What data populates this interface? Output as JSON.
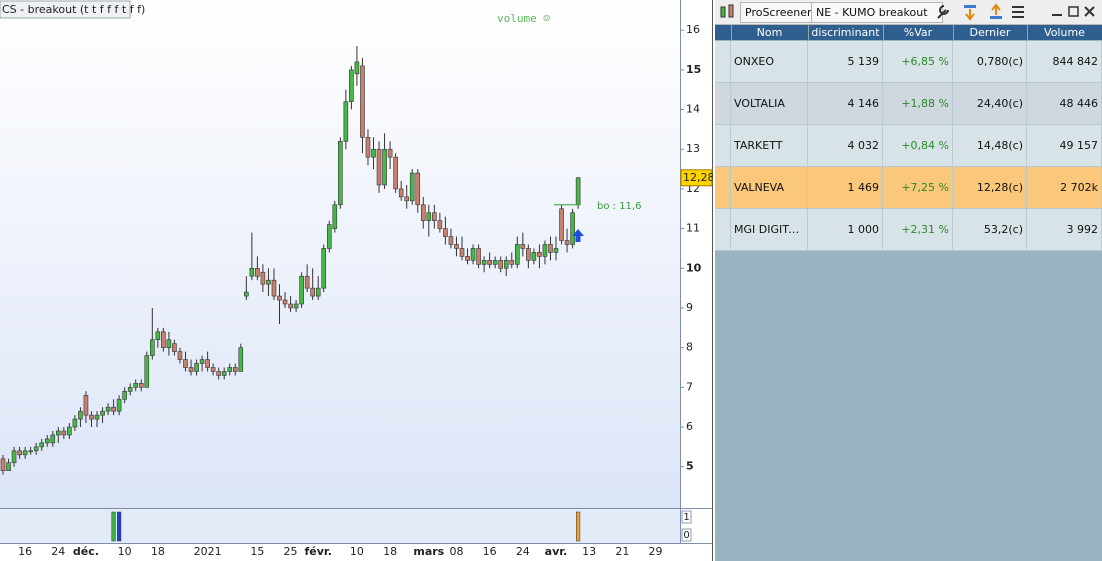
{
  "chart_data": {
    "type": "candlestick",
    "title": "CS - breakout (t t f f f t f f)",
    "indicator_label": "volume ☺",
    "categories": [
      null,
      null,
      null,
      null,
      "16",
      null,
      null,
      null,
      null,
      null,
      "24",
      null,
      null,
      null,
      null,
      "déc.",
      null,
      null,
      null,
      null,
      null,
      null,
      "10",
      null,
      null,
      null,
      null,
      null,
      "18",
      null,
      null,
      null,
      null,
      null,
      null,
      null,
      null,
      "2021",
      null,
      null,
      null,
      null,
      null,
      null,
      null,
      null,
      "15",
      null,
      null,
      null,
      null,
      null,
      "25",
      null,
      null,
      null,
      null,
      "févr.",
      null,
      null,
      null,
      null,
      null,
      null,
      "10",
      null,
      null,
      null,
      null,
      null,
      "18",
      null,
      null,
      null,
      null,
      null,
      null,
      "mars",
      null,
      null,
      null,
      null,
      "08",
      null,
      null,
      null,
      null,
      null,
      "16",
      null,
      null,
      null,
      null,
      null,
      "24",
      null,
      null,
      null,
      null,
      null,
      "avr.",
      null,
      null,
      null,
      null,
      null,
      "13",
      null,
      null,
      null,
      null,
      null,
      "21",
      null,
      null,
      null,
      null,
      null,
      "29"
    ],
    "open": [
      5.2,
      4.9,
      5.1,
      5.4,
      5.3,
      5.4,
      5.4,
      5.5,
      5.6,
      5.6,
      5.8,
      5.9,
      5.8,
      6.0,
      6.2,
      6.8,
      6.3,
      6.2,
      6.3,
      6.4,
      6.5,
      6.4,
      6.7,
      6.9,
      7.0,
      7.1,
      7.0,
      7.8,
      8.2,
      8.4,
      8.0,
      8.1,
      7.9,
      7.7,
      7.5,
      7.4,
      7.6,
      7.7,
      7.5,
      7.4,
      7.3,
      7.4,
      7.5,
      7.4,
      9.3,
      9.8,
      10.0,
      9.9,
      9.6,
      9.7,
      9.3,
      9.2,
      9.1,
      9.0,
      9.1,
      9.8,
      9.5,
      9.3,
      9.5,
      10.5,
      11.0,
      11.6,
      13.2,
      14.2,
      14.9,
      15.1,
      13.3,
      12.8,
      13.0,
      12.1,
      13.0,
      12.8,
      12.0,
      11.8,
      11.7,
      12.4,
      11.6,
      11.2,
      11.4,
      11.2,
      11.0,
      10.8,
      10.6,
      10.5,
      10.3,
      10.2,
      10.5,
      10.1,
      10.2,
      10.1,
      10.2,
      10.0,
      10.2,
      10.1,
      10.6,
      10.5,
      10.2,
      10.4,
      10.3,
      10.6,
      10.4,
      11.5,
      10.7,
      10.6,
      11.6,
      null,
      null,
      null,
      null,
      null,
      null,
      null,
      null,
      null,
      null,
      null,
      null,
      null,
      null
    ],
    "high": [
      5.3,
      5.2,
      5.5,
      5.5,
      5.5,
      5.5,
      5.6,
      5.7,
      5.8,
      5.9,
      6.0,
      6.0,
      6.1,
      6.3,
      6.5,
      6.9,
      6.4,
      6.4,
      6.5,
      6.6,
      6.7,
      6.8,
      7.0,
      7.1,
      7.2,
      7.2,
      7.9,
      9.0,
      8.5,
      8.5,
      8.4,
      8.2,
      8.0,
      7.9,
      7.7,
      7.7,
      7.8,
      7.9,
      7.6,
      7.5,
      7.5,
      7.6,
      7.6,
      8.1,
      9.8,
      10.9,
      10.3,
      10.1,
      10.0,
      10.0,
      9.6,
      9.4,
      9.3,
      9.2,
      9.9,
      10.1,
      10.0,
      9.8,
      10.6,
      11.2,
      11.7,
      13.3,
      14.5,
      15.1,
      15.6,
      15.3,
      13.5,
      13.3,
      13.2,
      13.4,
      13.2,
      12.9,
      12.2,
      12.1,
      12.5,
      12.5,
      11.8,
      11.6,
      11.6,
      11.4,
      11.3,
      11.0,
      10.8,
      10.8,
      10.5,
      10.6,
      10.6,
      10.3,
      10.4,
      10.3,
      10.3,
      10.3,
      10.4,
      10.8,
      10.9,
      10.6,
      10.5,
      10.6,
      10.7,
      10.8,
      10.8,
      11.6,
      11.0,
      11.5,
      12.3,
      null,
      null,
      null,
      null,
      null,
      null,
      null,
      null,
      null,
      null,
      null,
      null,
      null,
      null
    ],
    "low": [
      4.8,
      4.9,
      5.0,
      5.2,
      5.2,
      5.3,
      5.3,
      5.4,
      5.5,
      5.5,
      5.6,
      5.7,
      5.7,
      5.9,
      6.0,
      6.1,
      6.0,
      6.0,
      6.1,
      6.3,
      6.3,
      6.3,
      6.6,
      6.8,
      6.9,
      6.9,
      7.0,
      7.7,
      8.0,
      7.9,
      7.8,
      7.8,
      7.6,
      7.4,
      7.3,
      7.3,
      7.4,
      7.4,
      7.3,
      7.2,
      7.2,
      7.3,
      7.3,
      7.4,
      9.2,
      9.7,
      9.7,
      9.4,
      9.3,
      9.2,
      8.6,
      9.0,
      8.9,
      8.9,
      9.0,
      9.4,
      9.2,
      9.2,
      9.4,
      10.4,
      10.9,
      11.5,
      13.0,
      14.0,
      14.6,
      12.9,
      12.6,
      12.5,
      11.9,
      12.0,
      12.5,
      11.9,
      11.7,
      11.5,
      11.6,
      11.4,
      11.0,
      10.8,
      11.0,
      10.9,
      10.6,
      10.5,
      10.3,
      10.2,
      10.1,
      10.1,
      10.0,
      9.9,
      10.0,
      10.0,
      9.9,
      9.8,
      10.0,
      10.0,
      10.3,
      10.0,
      10.1,
      10.0,
      10.1,
      10.2,
      10.2,
      10.6,
      10.4,
      10.5,
      11.5,
      null,
      null,
      null,
      null,
      null,
      null,
      null,
      null,
      null,
      null,
      null,
      null,
      null,
      null
    ],
    "close": [
      4.9,
      5.1,
      5.4,
      5.3,
      5.4,
      5.4,
      5.5,
      5.6,
      5.7,
      5.8,
      5.9,
      5.8,
      6.0,
      6.2,
      6.4,
      6.3,
      6.2,
      6.3,
      6.4,
      6.5,
      6.4,
      6.7,
      6.9,
      7.0,
      7.1,
      7.0,
      7.8,
      8.2,
      8.4,
      8.0,
      8.2,
      7.9,
      7.7,
      7.5,
      7.4,
      7.6,
      7.7,
      7.5,
      7.4,
      7.3,
      7.4,
      7.5,
      7.4,
      8.0,
      9.4,
      10.0,
      9.8,
      9.6,
      9.7,
      9.3,
      9.2,
      9.1,
      9.0,
      9.1,
      9.8,
      9.5,
      9.3,
      9.5,
      10.5,
      11.1,
      11.6,
      13.2,
      14.2,
      15.0,
      15.2,
      13.3,
      12.8,
      13.0,
      12.1,
      13.0,
      12.8,
      12.0,
      11.8,
      11.7,
      12.4,
      11.6,
      11.2,
      11.4,
      11.2,
      11.0,
      10.8,
      10.6,
      10.5,
      10.3,
      10.2,
      10.5,
      10.1,
      10.2,
      10.1,
      10.2,
      10.0,
      10.2,
      10.1,
      10.6,
      10.5,
      10.2,
      10.4,
      10.3,
      10.6,
      10.4,
      10.5,
      10.7,
      10.6,
      11.4,
      12.28,
      null,
      null,
      null,
      null,
      null,
      null,
      null,
      null,
      null,
      null,
      null,
      null,
      null,
      null
    ],
    "up_color": "#46b846",
    "down_color": "#c8806e",
    "ylim": [
      3.96,
      16.76
    ],
    "yticks": [
      5,
      6,
      7,
      8,
      9,
      10,
      11,
      12,
      13,
      14,
      15,
      16
    ],
    "last_price": {
      "value": 12.28,
      "label": "12,28"
    },
    "breakout": {
      "value": 11.6,
      "label": "bo : 11,6",
      "from": 100,
      "to": 104
    },
    "signals": {
      "ylim": [
        0,
        1
      ],
      "yticks": [
        0,
        1
      ],
      "bars": [
        {
          "x": 20,
          "value": 1,
          "color": "#3cb043"
        },
        {
          "x": 21,
          "value": 1,
          "color": "#1f3fd0"
        },
        {
          "x": 104,
          "value": 1,
          "color": "#f0a030"
        }
      ]
    }
  },
  "screener": {
    "tabs": [
      "ProScreener",
      "NE - KUMO breakout"
    ],
    "columns": [
      "Nom",
      "discriminant",
      "%Var",
      "Dernier",
      "Volume"
    ],
    "rows": [
      [
        "ONXEO",
        "5 139",
        "+6,85 %",
        "0,780(c)",
        "844 842"
      ],
      [
        "VOLTALIA",
        "4 146",
        "+1,88 %",
        "24,40(c)",
        "48 446"
      ],
      [
        "TARKETT",
        "4 032",
        "+0,84 %",
        "14,48(c)",
        "49 157"
      ],
      [
        "VALNEVA",
        "1 469",
        "+7,25 %",
        "12,28(c)",
        "2 702k"
      ],
      [
        "MGI DIGITAL ...",
        "1 000",
        "+2,31 %",
        "53,2(c)",
        "3 992"
      ]
    ]
  }
}
